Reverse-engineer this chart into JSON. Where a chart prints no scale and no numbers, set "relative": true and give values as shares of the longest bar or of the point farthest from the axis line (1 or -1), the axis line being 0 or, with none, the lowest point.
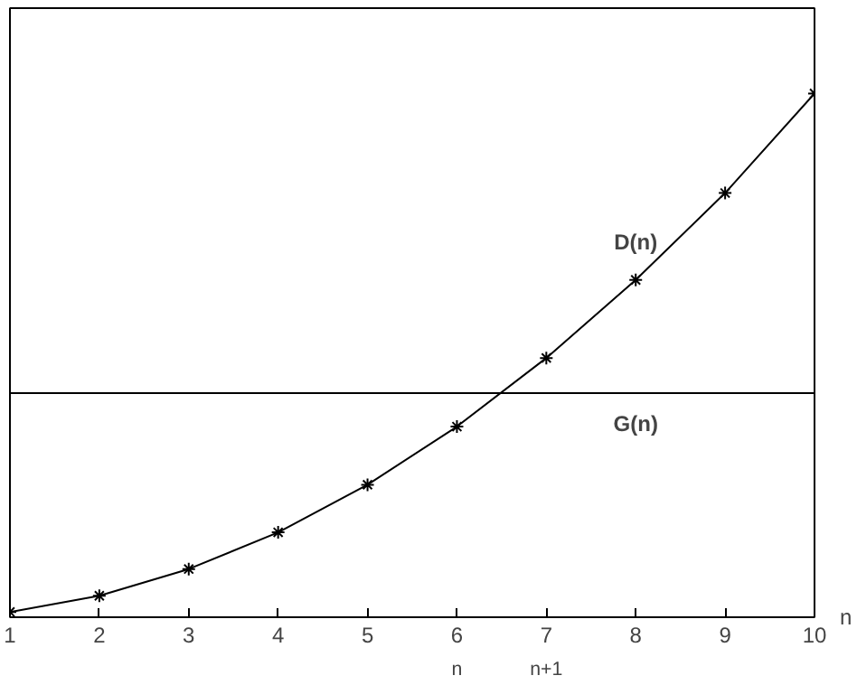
{
  "chart_data": {
    "type": "line",
    "relative": true,
    "xlabel": "n",
    "x": [
      1,
      2,
      3,
      4,
      5,
      6,
      7,
      8,
      9,
      10
    ],
    "xlim": [
      1,
      10
    ],
    "xticks": [
      1,
      2,
      3,
      4,
      5,
      6,
      7,
      8,
      9,
      10
    ],
    "series": [
      {
        "name": "D(n)",
        "color": "#000000",
        "values": [
          0.01,
          0.041,
          0.092,
          0.162,
          0.253,
          0.364,
          0.495,
          0.644,
          0.81,
          1
        ]
      }
    ],
    "ref_lines": [
      {
        "axis": "y",
        "value": 0.428,
        "label": "G(n)",
        "color": "#000000"
      }
    ],
    "annotations": [
      "n",
      "n+1"
    ],
    "marker": "cross",
    "line_style": "solid",
    "grid": false,
    "legend": false
  }
}
